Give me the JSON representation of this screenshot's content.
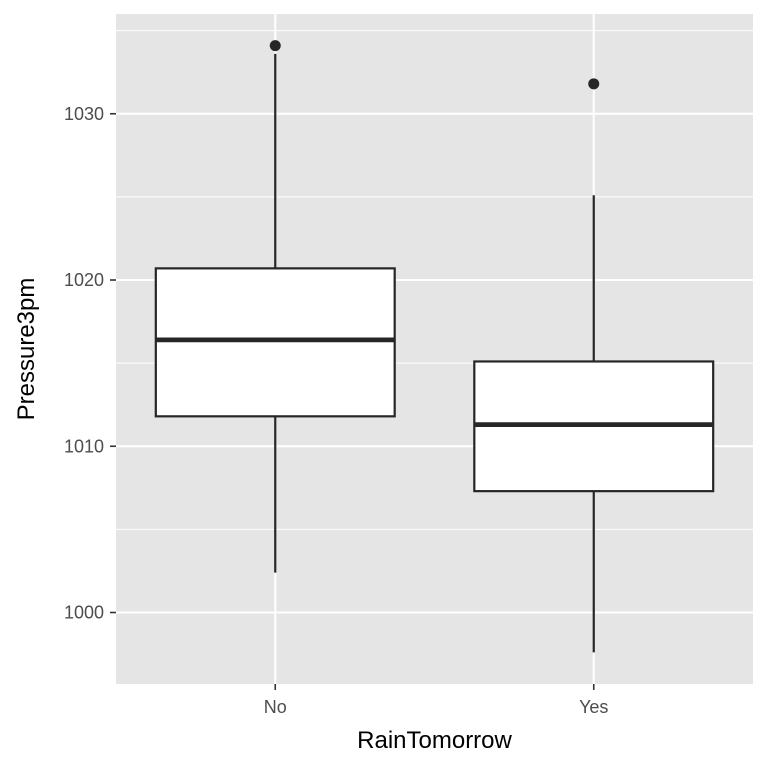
{
  "chart_data": {
    "type": "boxplot",
    "xlabel": "RainTomorrow",
    "ylabel": "Pressure3pm",
    "categories": [
      "No",
      "Yes"
    ],
    "ylim": [
      995.7,
      1036.0
    ],
    "yticks": [
      1000,
      1010,
      1020,
      1030
    ],
    "grid": true,
    "boxes": [
      {
        "category": "No",
        "whisker_low": 1002.4,
        "q1": 1011.8,
        "median": 1016.4,
        "q3": 1020.7,
        "whisker_high": 1033.6,
        "outliers": [
          1034.1
        ]
      },
      {
        "category": "Yes",
        "whisker_low": 997.6,
        "q1": 1007.3,
        "median": 1011.3,
        "q3": 1015.1,
        "whisker_high": 1025.1,
        "outliers": [
          1031.8
        ]
      }
    ],
    "colors": {
      "panel": "#e5e5e5",
      "grid": "#ffffff",
      "box_fill": "#ffffff",
      "box_line": "#262626",
      "tick_text": "#4d4d4d"
    }
  }
}
